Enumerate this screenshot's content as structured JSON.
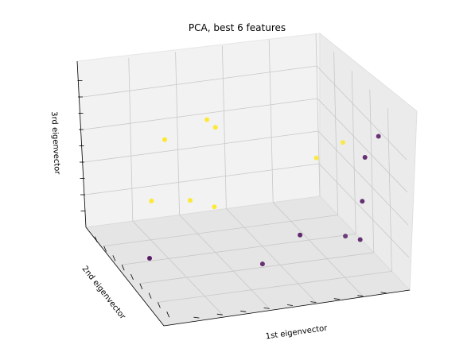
{
  "chart_data": {
    "type": "scatter",
    "title": "PCA, best 6 features",
    "xlabel": "1st eigenvector",
    "ylabel": "2nd eigenvector",
    "zlabel": "3rd eigenvector",
    "tick_labels_shown": false,
    "grid": true,
    "colormap": "viridis",
    "colors": {
      "class_low": "#440154",
      "class_high": "#fde725"
    },
    "points": [
      {
        "x": 0.12,
        "y": 0.7,
        "z": 0.55,
        "class": 1
      },
      {
        "x": 0.3,
        "y": 0.55,
        "z": 0.7,
        "class": 1
      },
      {
        "x": 0.34,
        "y": 0.6,
        "z": 0.78,
        "class": 1
      },
      {
        "x": 0.56,
        "y": 0.22,
        "z": 0.6,
        "class": 1
      },
      {
        "x": 0.68,
        "y": 0.15,
        "z": 0.75,
        "class": 1
      },
      {
        "x": 0.22,
        "y": 0.8,
        "z": 0.25,
        "class": 1
      },
      {
        "x": 0.34,
        "y": 0.68,
        "z": 0.3,
        "class": 1
      },
      {
        "x": 0.4,
        "y": 0.6,
        "z": 0.28,
        "class": 1
      },
      {
        "x": 0.74,
        "y": 0.08,
        "z": 0.68,
        "class": 0
      },
      {
        "x": 0.82,
        "y": 0.05,
        "z": 0.85,
        "class": 0
      },
      {
        "x": 0.75,
        "y": 0.1,
        "z": 0.42,
        "class": 0
      },
      {
        "x": 0.77,
        "y": 0.12,
        "z": 0.2,
        "class": 0
      },
      {
        "x": 0.62,
        "y": 0.32,
        "z": 0.18,
        "class": 0
      },
      {
        "x": 0.95,
        "y": 0.25,
        "z": 0.35,
        "class": 0
      },
      {
        "x": 0.8,
        "y": 0.55,
        "z": 0.15,
        "class": 0
      },
      {
        "x": 0.45,
        "y": 0.9,
        "z": 0.05,
        "class": 0
      }
    ]
  }
}
